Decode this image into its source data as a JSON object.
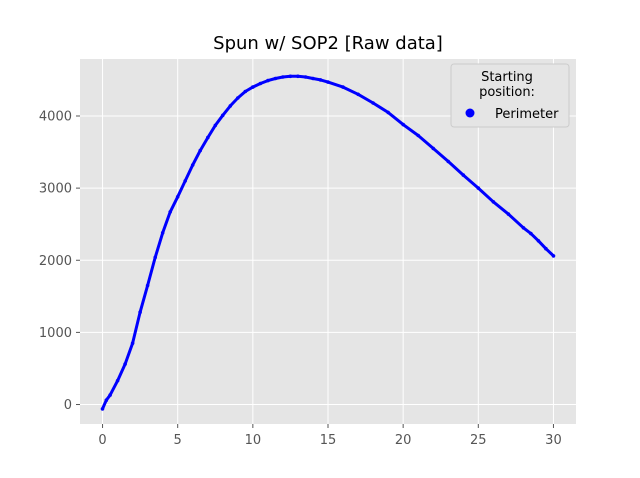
{
  "chart_data": {
    "type": "scatter",
    "title": "Spun w/ SOP2 [Raw data]",
    "xlabel": "",
    "ylabel": "",
    "xlim": [
      -1.5,
      31.5
    ],
    "ylim": [
      -270,
      4790
    ],
    "xticks": [
      0,
      5,
      10,
      15,
      20,
      25,
      30
    ],
    "yticks": [
      0,
      1000,
      2000,
      3000,
      4000
    ],
    "grid": true,
    "legend": {
      "title": "Starting\n position:",
      "placement": "top-right"
    },
    "series": [
      {
        "name": "Perimeter",
        "color": "#0000ff",
        "x": [
          0,
          0.25,
          0.5,
          1,
          1.5,
          2,
          2.5,
          3,
          3.5,
          4,
          4.5,
          5,
          5.5,
          6,
          6.5,
          7,
          7.5,
          8,
          8.5,
          9,
          9.5,
          10,
          10.5,
          11,
          11.5,
          12,
          12.5,
          13,
          13.5,
          14,
          14.5,
          15,
          16,
          17,
          18,
          19,
          20,
          21,
          22,
          23,
          24,
          25,
          26,
          27,
          28,
          28.5,
          29,
          29.5,
          30
        ],
        "y": [
          -60,
          60,
          130,
          330,
          560,
          850,
          1280,
          1650,
          2040,
          2380,
          2670,
          2880,
          3100,
          3320,
          3520,
          3700,
          3870,
          4010,
          4140,
          4250,
          4340,
          4400,
          4450,
          4490,
          4520,
          4540,
          4550,
          4550,
          4540,
          4520,
          4500,
          4470,
          4400,
          4300,
          4180,
          4050,
          3880,
          3730,
          3550,
          3370,
          3180,
          3000,
          2810,
          2640,
          2450,
          2370,
          2270,
          2160,
          2060
        ]
      }
    ]
  }
}
